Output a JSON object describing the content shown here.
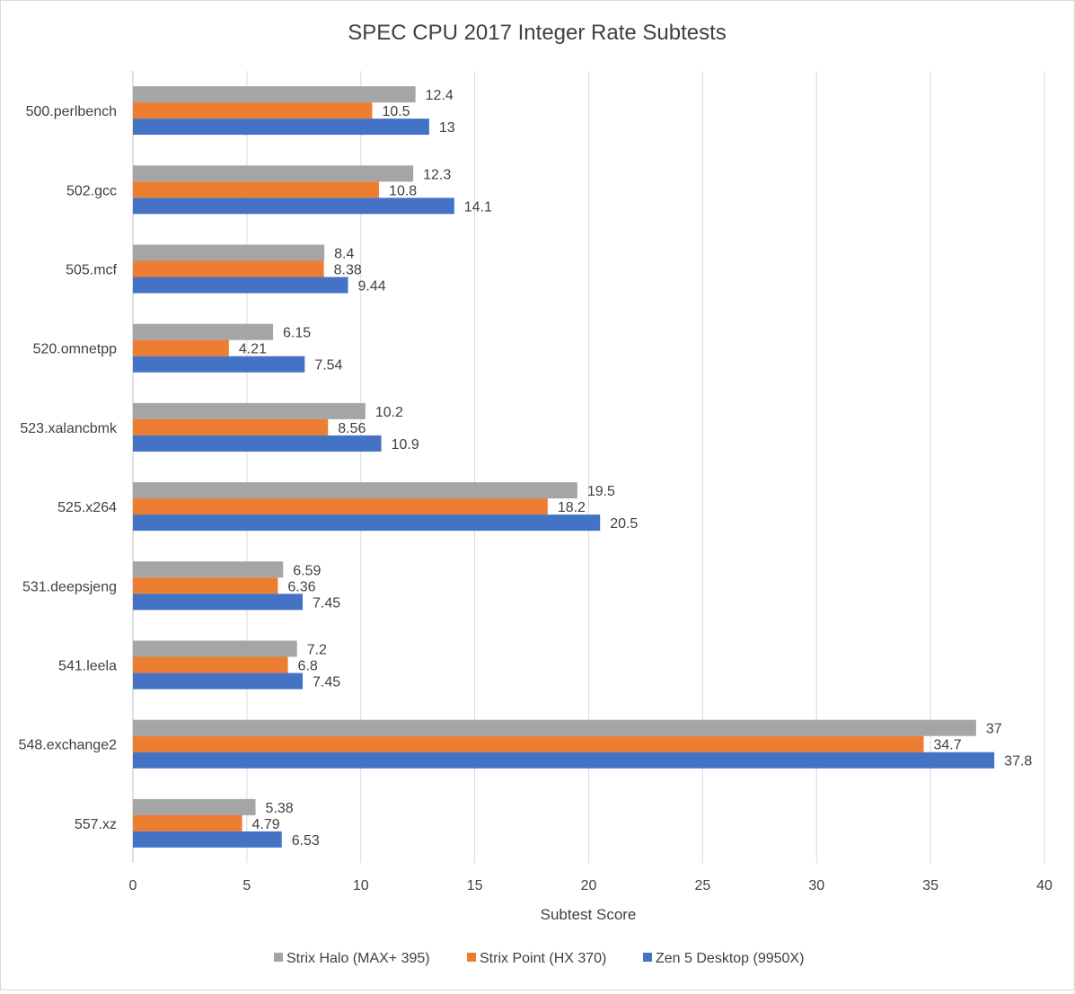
{
  "chart_data": {
    "type": "bar",
    "orientation": "horizontal",
    "title": "SPEC CPU 2017 Integer Rate Subtests",
    "xlabel": "Subtest Score",
    "ylabel": "",
    "xlim": [
      0,
      40
    ],
    "xticks": [
      0,
      5,
      10,
      15,
      20,
      25,
      30,
      35,
      40
    ],
    "grid": true,
    "legend_position": "bottom",
    "categories": [
      "500.perlbench",
      "502.gcc",
      "505.mcf",
      "520.omnetpp",
      "523.xalancbmk",
      "525.x264",
      "531.deepsjeng",
      "541.leela",
      "548.exchange2",
      "557.xz"
    ],
    "series": [
      {
        "name": "Strix Halo (MAX+ 395)",
        "color": "#a5a5a5",
        "values": [
          12.4,
          12.3,
          8.4,
          6.15,
          10.2,
          19.5,
          6.59,
          7.2,
          37,
          5.38
        ]
      },
      {
        "name": "Strix Point (HX 370)",
        "color": "#ed7d31",
        "values": [
          10.5,
          10.8,
          8.38,
          4.21,
          8.56,
          18.2,
          6.36,
          6.8,
          34.7,
          4.79
        ]
      },
      {
        "name": "Zen 5 Desktop (9950X)",
        "color": "#4472c4",
        "values": [
          13,
          14.1,
          9.44,
          7.54,
          10.9,
          20.5,
          7.45,
          7.45,
          37.8,
          6.53
        ]
      }
    ]
  }
}
